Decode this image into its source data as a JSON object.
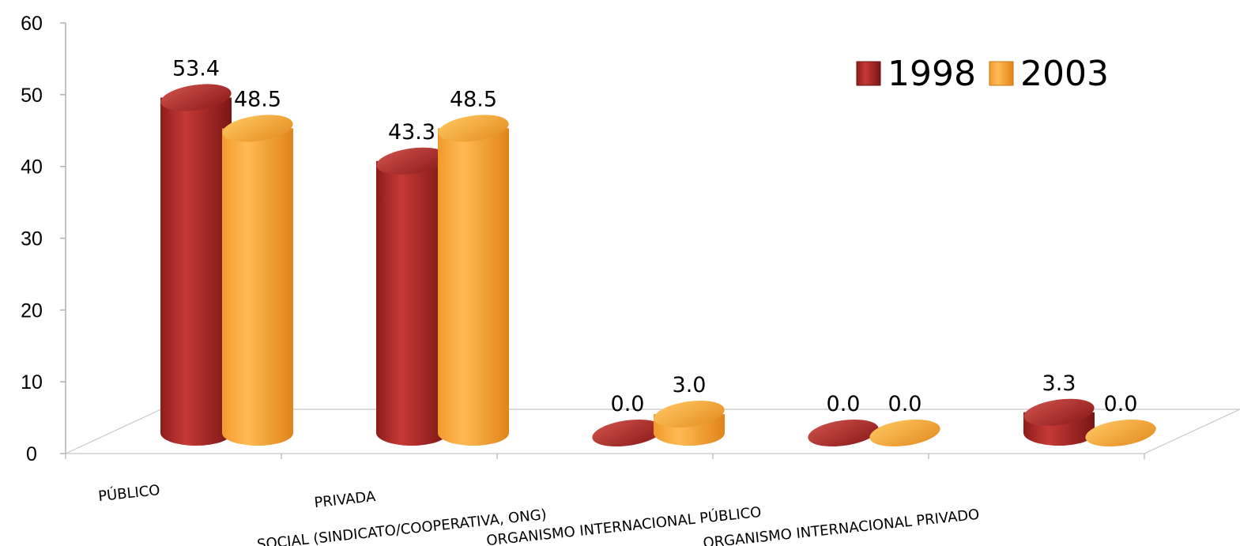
{
  "chart_data": {
    "type": "bar",
    "title": "",
    "xlabel": "",
    "ylabel": "",
    "ylim": [
      0,
      60
    ],
    "yticks": [
      0,
      10,
      20,
      30,
      40,
      50,
      60
    ],
    "categories": [
      "PÚBLICO",
      "PRIVADA",
      "SOCIAL (SINDICATO/COOPERATIVA, ONG)",
      "ORGANISMO INTERNACIONAL PÚBLICO",
      "ORGANISMO INTERNACIONAL PRIVADO"
    ],
    "series": [
      {
        "name": "1998",
        "values": [
          53.4,
          43.3,
          0.0,
          0.0,
          3.3
        ],
        "labels": [
          "53.4",
          "43.3",
          "0.0",
          "0.0",
          "3.3"
        ],
        "color": "#a52a2a"
      },
      {
        "name": "2003",
        "values": [
          48.5,
          48.5,
          3.0,
          0.0,
          0.0
        ],
        "labels": [
          "48.5",
          "48.5",
          "3.0",
          "0.0",
          "0.0"
        ],
        "color": "#f5a033"
      }
    ],
    "legend_position": "top-right",
    "grid": false,
    "style": "3d-cylinder"
  }
}
